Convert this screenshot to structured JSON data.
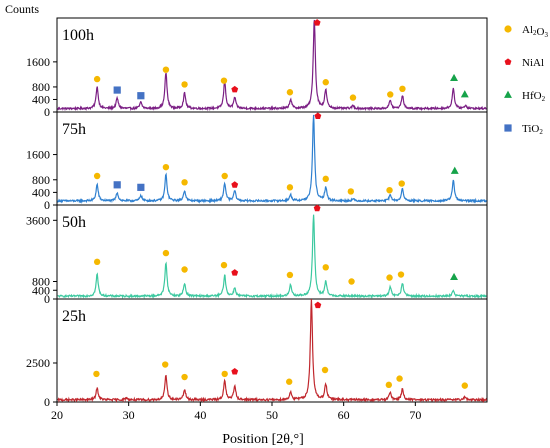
{
  "chart_data": {
    "type": "line",
    "ylabel": "Counts",
    "xlabel": "Position [2θ,°]",
    "xlim": [
      20,
      80
    ],
    "x_ticks": [
      20,
      30,
      40,
      50,
      60,
      70
    ],
    "legend": [
      {
        "key": "al2o3",
        "base": "Al",
        "sub1": "2",
        "mid": "O",
        "sub2": "3",
        "marker": "circle",
        "color": "#F5B800"
      },
      {
        "key": "nial",
        "base": "NiAl",
        "marker": "pentagon",
        "color": "#E8101C"
      },
      {
        "key": "hfo2",
        "base": "HfO",
        "sub1": "2",
        "marker": "triangle",
        "color": "#16A34A"
      },
      {
        "key": "tio2",
        "base": "TiO",
        "sub1": "2",
        "marker": "square",
        "color": "#4472C4"
      }
    ],
    "panels": [
      {
        "name": "100h",
        "color": "#7B1F84",
        "ylim": [
          0,
          3000
        ],
        "y_ticks": [
          0,
          400,
          800,
          1600
        ],
        "baseline": 110,
        "peaks": [
          [
            25.6,
            700
          ],
          [
            28.4,
            330
          ],
          [
            31.7,
            200
          ],
          [
            35.2,
            1150
          ],
          [
            37.8,
            490
          ],
          [
            43.4,
            860
          ],
          [
            44.8,
            350
          ],
          [
            52.6,
            290
          ],
          [
            55.9,
            2850
          ],
          [
            57.5,
            580
          ],
          [
            61.3,
            90
          ],
          [
            66.5,
            260
          ],
          [
            68.2,
            420
          ],
          [
            75.3,
            650
          ],
          [
            77,
            100
          ]
        ],
        "markers": [
          {
            "k": "al2o3",
            "x": 25.6,
            "y": 1050
          },
          {
            "k": "tio2",
            "x": 28.4,
            "y": 700
          },
          {
            "k": "tio2",
            "x": 31.7,
            "y": 520
          },
          {
            "k": "al2o3",
            "x": 35.2,
            "y": 1350
          },
          {
            "k": "al2o3",
            "x": 37.8,
            "y": 880
          },
          {
            "k": "al2o3",
            "x": 43.3,
            "y": 1000
          },
          {
            "k": "nial",
            "x": 44.8,
            "y": 720
          },
          {
            "k": "al2o3",
            "x": 52.5,
            "y": 630
          },
          {
            "k": "nial",
            "x": 56.3,
            "y": 2850
          },
          {
            "k": "al2o3",
            "x": 57.5,
            "y": 950
          },
          {
            "k": "al2o3",
            "x": 61.3,
            "y": 460
          },
          {
            "k": "al2o3",
            "x": 66.5,
            "y": 560
          },
          {
            "k": "al2o3",
            "x": 68.2,
            "y": 740
          },
          {
            "k": "hfo2",
            "x": 75.4,
            "y": 1080
          },
          {
            "k": "hfo2",
            "x": 76.9,
            "y": 560
          }
        ]
      },
      {
        "name": "75h",
        "color": "#2F80D0",
        "ylim": [
          0,
          2950
        ],
        "y_ticks": [
          0,
          400,
          800,
          1600
        ],
        "baseline": 130,
        "peaks": [
          [
            25.6,
            520
          ],
          [
            28.4,
            260
          ],
          [
            31.7,
            180
          ],
          [
            35.2,
            830
          ],
          [
            37.8,
            330
          ],
          [
            43.4,
            560
          ],
          [
            44.8,
            320
          ],
          [
            52.6,
            190
          ],
          [
            55.8,
            2700
          ],
          [
            57.5,
            420
          ],
          [
            61.3,
            60
          ],
          [
            66.5,
            190
          ],
          [
            68.2,
            380
          ],
          [
            75.3,
            660
          ]
        ],
        "markers": [
          {
            "k": "al2o3",
            "x": 25.6,
            "y": 920
          },
          {
            "k": "tio2",
            "x": 28.4,
            "y": 640
          },
          {
            "k": "tio2",
            "x": 31.7,
            "y": 560
          },
          {
            "k": "al2o3",
            "x": 35.2,
            "y": 1200
          },
          {
            "k": "al2o3",
            "x": 37.8,
            "y": 720
          },
          {
            "k": "al2o3",
            "x": 43.4,
            "y": 920
          },
          {
            "k": "nial",
            "x": 44.8,
            "y": 640
          },
          {
            "k": "al2o3",
            "x": 52.5,
            "y": 560
          },
          {
            "k": "nial",
            "x": 56.4,
            "y": 2820
          },
          {
            "k": "al2o3",
            "x": 57.5,
            "y": 830
          },
          {
            "k": "al2o3",
            "x": 61,
            "y": 430
          },
          {
            "k": "al2o3",
            "x": 66.4,
            "y": 470
          },
          {
            "k": "al2o3",
            "x": 68.1,
            "y": 680
          },
          {
            "k": "hfo2",
            "x": 75.5,
            "y": 1080
          }
        ]
      },
      {
        "name": "50h",
        "color": "#3CC9A0",
        "ylim": [
          0,
          4300
        ],
        "y_ticks": [
          0,
          400,
          800,
          3600
        ],
        "baseline": 130,
        "peaks": [
          [
            25.6,
            1000
          ],
          [
            35.2,
            1540
          ],
          [
            37.8,
            580
          ],
          [
            43.4,
            960
          ],
          [
            44.8,
            370
          ],
          [
            52.6,
            520
          ],
          [
            55.8,
            3700
          ],
          [
            57.5,
            650
          ],
          [
            66.5,
            400
          ],
          [
            68.2,
            600
          ],
          [
            75.3,
            260
          ]
        ],
        "markers": [
          {
            "k": "al2o3",
            "x": 25.6,
            "y": 1700
          },
          {
            "k": "al2o3",
            "x": 35.2,
            "y": 2100
          },
          {
            "k": "al2o3",
            "x": 37.8,
            "y": 1350
          },
          {
            "k": "al2o3",
            "x": 43.3,
            "y": 1550
          },
          {
            "k": "nial",
            "x": 44.8,
            "y": 1200
          },
          {
            "k": "al2o3",
            "x": 52.5,
            "y": 1100
          },
          {
            "k": "nial",
            "x": 56.3,
            "y": 4150
          },
          {
            "k": "al2o3",
            "x": 57.5,
            "y": 1450
          },
          {
            "k": "al2o3",
            "x": 61.1,
            "y": 800
          },
          {
            "k": "al2o3",
            "x": 66.4,
            "y": 980
          },
          {
            "k": "al2o3",
            "x": 68,
            "y": 1120
          },
          {
            "k": "hfo2",
            "x": 75.4,
            "y": 1000
          }
        ]
      },
      {
        "name": "25h",
        "color": "#C0272D",
        "ylim": [
          0,
          6600
        ],
        "y_ticks": [
          0,
          2500
        ],
        "baseline": 140,
        "peaks": [
          [
            25.6,
            750
          ],
          [
            29.7,
            130
          ],
          [
            35.2,
            1550
          ],
          [
            37.8,
            650
          ],
          [
            43.4,
            1200
          ],
          [
            44.8,
            900
          ],
          [
            52.6,
            500
          ],
          [
            55.5,
            6500
          ],
          [
            57.5,
            1000
          ],
          [
            66.5,
            480
          ],
          [
            68.2,
            700
          ],
          [
            76.9,
            200
          ]
        ],
        "markers": [
          {
            "k": "al2o3",
            "x": 25.5,
            "y": 1800
          },
          {
            "k": "al2o3",
            "x": 35.1,
            "y": 2400
          },
          {
            "k": "al2o3",
            "x": 37.8,
            "y": 1600
          },
          {
            "k": "al2o3",
            "x": 43.4,
            "y": 1800
          },
          {
            "k": "nial",
            "x": 44.8,
            "y": 1950
          },
          {
            "k": "al2o3",
            "x": 52.4,
            "y": 1300
          },
          {
            "k": "nial",
            "x": 56.4,
            "y": 6200
          },
          {
            "k": "al2o3",
            "x": 57.4,
            "y": 2050
          },
          {
            "k": "al2o3",
            "x": 66.3,
            "y": 1100
          },
          {
            "k": "al2o3",
            "x": 67.8,
            "y": 1500
          },
          {
            "k": "al2o3",
            "x": 76.9,
            "y": 1050
          }
        ]
      }
    ]
  }
}
